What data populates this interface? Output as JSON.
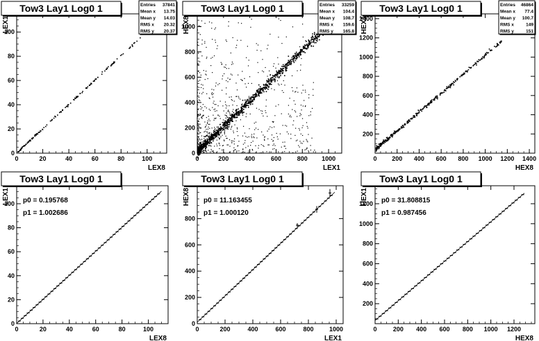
{
  "chart_data": [
    {
      "type": "scatter",
      "title": "Tow3 Lay1 Log0 1",
      "xlabel": "LEX8",
      "ylabel": "LEX1",
      "xlim": [
        0,
        115
      ],
      "ylim": [
        0,
        115
      ],
      "xticks": [
        0,
        20,
        40,
        60,
        80,
        100
      ],
      "yticks": [
        0,
        20,
        40,
        60,
        80,
        100
      ],
      "stats": [
        {
          "label": "Entries",
          "value": "37841"
        },
        {
          "label": "Mean x",
          "value": "13.75"
        },
        {
          "label": "Mean y",
          "value": "14.03"
        },
        {
          "label": "RMS x",
          "value": "20.32"
        },
        {
          "label": "RMS y",
          "value": "20.37"
        }
      ],
      "line": {
        "x": [
          1,
          105
        ],
        "slope": 1.0026,
        "intercept": 0.2
      },
      "scatter_n": 170,
      "noise": 0.4,
      "outliers_n": 0
    },
    {
      "type": "scatter",
      "title": "Tow3 Lay1 Log0 1",
      "xlabel": "LEX1",
      "ylabel": "HEX8",
      "xlim": [
        0,
        1100
      ],
      "ylim": [
        0,
        1100
      ],
      "xticks": [
        0,
        200,
        400,
        600,
        800,
        1000
      ],
      "yticks": [
        0,
        200,
        400,
        600,
        800,
        1000
      ],
      "stats": [
        {
          "label": "Entries",
          "value": "33259"
        },
        {
          "label": "Mean x",
          "value": "104.4"
        },
        {
          "label": "Mean y",
          "value": "108.7"
        },
        {
          "label": "RMS x",
          "value": "159.6"
        },
        {
          "label": "RMS y",
          "value": "165.8"
        }
      ],
      "line": {
        "x": [
          2,
          1000
        ],
        "slope": 1.0001,
        "intercept": 11.16
      },
      "scatter_n": 1100,
      "noise": 20,
      "outliers_n": 700
    },
    {
      "type": "scatter",
      "title": "Tow3 Lay1 Log0 1",
      "xlabel": "HEX8",
      "ylabel": "HEX1",
      "xlim": [
        0,
        1450
      ],
      "ylim": [
        0,
        1450
      ],
      "xticks": [
        0,
        200,
        400,
        600,
        800,
        1000,
        1200,
        1400
      ],
      "yticks": [
        200,
        400,
        600,
        800,
        1000,
        1200,
        1400
      ],
      "stats": [
        {
          "label": "Entries",
          "value": "46864"
        },
        {
          "label": "Mean x",
          "value": "77.4"
        },
        {
          "label": "Mean y",
          "value": "100.7"
        },
        {
          "label": "RMS x",
          "value": "149"
        },
        {
          "label": "RMS y",
          "value": "151"
        }
      ],
      "line": {
        "x": [
          10,
          1150
        ],
        "slope": 0.9875,
        "intercept": 31.8
      },
      "scatter_n": 360,
      "noise": 10,
      "outliers_n": 0
    },
    {
      "type": "line",
      "title": "Tow3 Lay1 Log0 1",
      "xlabel": "LEX8",
      "ylabel": "LEX1",
      "xlim": [
        0,
        115
      ],
      "ylim": [
        0,
        115
      ],
      "xticks": [
        0,
        20,
        40,
        60,
        80,
        100
      ],
      "yticks": [
        0,
        20,
        40,
        60,
        80,
        100
      ],
      "fit": {
        "p0": "p0 = 0.195768",
        "p1": "p1 = 1.002686"
      },
      "fit_line": {
        "x": [
          0,
          110
        ],
        "slope": 1.002686,
        "intercept": 0.195768
      },
      "profile": {
        "x_start": 2,
        "x_end": 108,
        "step": 2.25,
        "half_width": 1.1,
        "err": 0.4
      }
    },
    {
      "type": "line",
      "title": "Tow3 Lay1 Log0 1",
      "xlabel": "LEX1",
      "ylabel": "HEX8",
      "xlim": [
        0,
        1050
      ],
      "ylim": [
        0,
        1050
      ],
      "xticks": [
        0,
        200,
        400,
        600,
        800,
        1000
      ],
      "yticks": [
        0,
        200,
        400,
        600,
        800
      ],
      "fit": {
        "p0": "p0 = 11.163455",
        "p1": "p1 = 1.000120"
      },
      "fit_line": {
        "x": [
          0,
          990
        ],
        "slope": 1.00012,
        "intercept": 11.163455
      },
      "profile": {
        "x_start": 20,
        "x_end": 980,
        "step": 21,
        "half_width": 10,
        "err": 4
      },
      "outliers": [
        {
          "x": 720,
          "y": 750,
          "err": 15
        },
        {
          "x": 860,
          "y": 870,
          "err": 25
        },
        {
          "x": 955,
          "y": 995,
          "err": 30
        }
      ]
    },
    {
      "type": "line",
      "title": "Tow3 Lay1 Log0 1",
      "xlabel": "HEX8",
      "ylabel": "HEX1",
      "xlim": [
        0,
        1380
      ],
      "ylim": [
        0,
        1380
      ],
      "xticks": [
        0,
        200,
        400,
        600,
        800,
        1000,
        1200
      ],
      "yticks": [
        200,
        400,
        600,
        800,
        1000,
        1200
      ],
      "fit": {
        "p0": "p0 = 31.808815",
        "p1": "p1 = 0.987456"
      },
      "fit_line": {
        "x": [
          0,
          1290
        ],
        "slope": 0.987456,
        "intercept": 31.808815
      },
      "profile": {
        "x_start": 15,
        "x_end": 1285,
        "step": 28,
        "half_width": 13,
        "err": 4
      }
    }
  ]
}
